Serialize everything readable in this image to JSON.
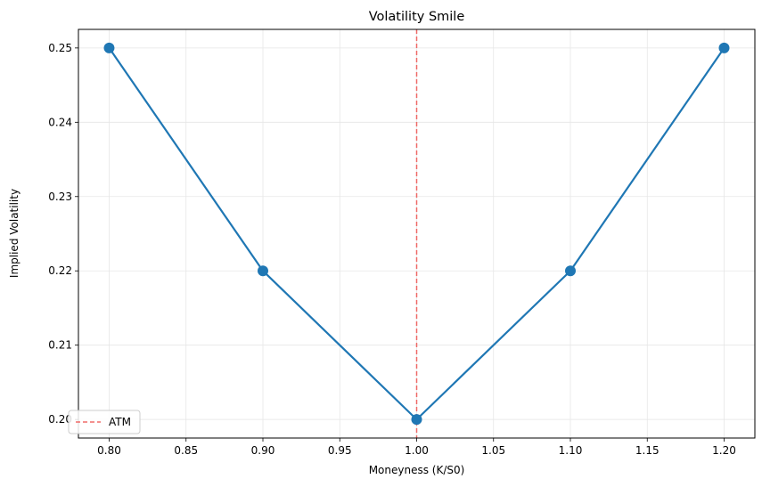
{
  "chart_data": {
    "type": "line",
    "title": "Volatility Smile",
    "xlabel": "Moneyness (K/S0)",
    "ylabel": "Implied Volatility",
    "xlim": [
      0.78,
      1.22
    ],
    "ylim": [
      0.1975,
      0.2525
    ],
    "xticks": [
      0.8,
      0.85,
      0.9,
      0.95,
      1.0,
      1.05,
      1.1,
      1.15,
      1.2
    ],
    "xtick_labels": [
      "0.80",
      "0.85",
      "0.90",
      "0.95",
      "1.00",
      "1.05",
      "1.10",
      "1.15",
      "1.20"
    ],
    "yticks": [
      0.2,
      0.21,
      0.22,
      0.23,
      0.24,
      0.25
    ],
    "ytick_labels": [
      "0.20",
      "0.21",
      "0.22",
      "0.23",
      "0.24",
      "0.25"
    ],
    "grid": true,
    "series": [
      {
        "x": [
          0.8,
          0.9,
          1.0,
          1.1,
          1.2
        ],
        "y": [
          0.25,
          0.22,
          0.2,
          0.22,
          0.25
        ],
        "color": "#1f77b4",
        "marker": "circle"
      }
    ],
    "reference_lines": [
      {
        "name": "ATM",
        "orientation": "vertical",
        "x": 1.0,
        "color": "#ef5350",
        "style": "dashed"
      }
    ],
    "legend": {
      "placement": "lower-left",
      "entries": [
        "ATM"
      ]
    }
  }
}
